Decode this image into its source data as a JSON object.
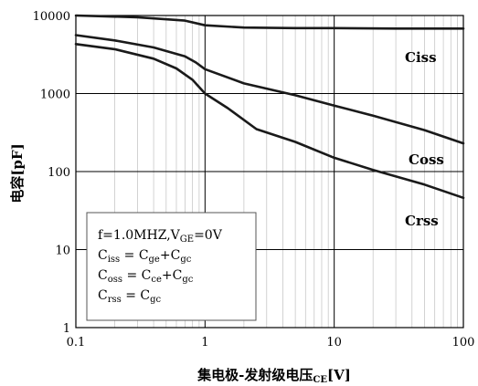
{
  "chart_data": {
    "type": "line",
    "xlabel": "集电极-发射级电压",
    "xlabel_sub": "CE",
    "xlabel_unit": "[V]",
    "ylabel": "电容[pF]",
    "xscale": "log",
    "yscale": "log",
    "xlim": [
      0.1,
      100
    ],
    "ylim": [
      1,
      10000
    ],
    "grid": true,
    "x_major_ticks": [
      0.1,
      1,
      10,
      100
    ],
    "x_tick_labels": [
      "0.1",
      "1",
      "10",
      "100"
    ],
    "y_major_ticks": [
      1,
      10,
      100,
      1000,
      10000
    ],
    "y_tick_labels": [
      "1",
      "10",
      "100",
      "1000",
      "10000"
    ],
    "series": [
      {
        "name": "Ciss",
        "points": [
          [
            0.1,
            10000
          ],
          [
            0.3,
            9500
          ],
          [
            0.7,
            8600
          ],
          [
            1,
            7500
          ],
          [
            2,
            7000
          ],
          [
            5,
            6900
          ],
          [
            10,
            6900
          ],
          [
            30,
            6800
          ],
          [
            100,
            6800
          ]
        ]
      },
      {
        "name": "Coss",
        "points": [
          [
            0.1,
            5600
          ],
          [
            0.2,
            4800
          ],
          [
            0.4,
            3900
          ],
          [
            0.7,
            3000
          ],
          [
            0.85,
            2500
          ],
          [
            1,
            2050
          ],
          [
            2,
            1350
          ],
          [
            5,
            950
          ],
          [
            10,
            700
          ],
          [
            20,
            520
          ],
          [
            50,
            340
          ],
          [
            100,
            230
          ]
        ]
      },
      {
        "name": "Crss",
        "points": [
          [
            0.1,
            4300
          ],
          [
            0.2,
            3700
          ],
          [
            0.4,
            2800
          ],
          [
            0.6,
            2100
          ],
          [
            0.8,
            1500
          ],
          [
            1,
            1000
          ],
          [
            1.5,
            650
          ],
          [
            2.5,
            350
          ],
          [
            5,
            240
          ],
          [
            10,
            150
          ],
          [
            20,
            105
          ],
          [
            50,
            68
          ],
          [
            100,
            46
          ]
        ]
      }
    ],
    "annotation": {
      "line1": "f=1.0MHZ,V",
      "line1_sub": "GE",
      "line1_tail": "=0V",
      "line2": {
        "a": "C",
        "a_sub": "iss",
        "b": " = C",
        "b_sub": "ge",
        "c": "+C",
        "c_sub": "gc"
      },
      "line3": {
        "a": "C",
        "a_sub": "oss",
        "b": " = C",
        "b_sub": "ce",
        "c": "+C",
        "c_sub": "gc"
      },
      "line4": {
        "a": "C",
        "a_sub": "rss",
        "b": " = C",
        "b_sub": "gc"
      }
    }
  }
}
